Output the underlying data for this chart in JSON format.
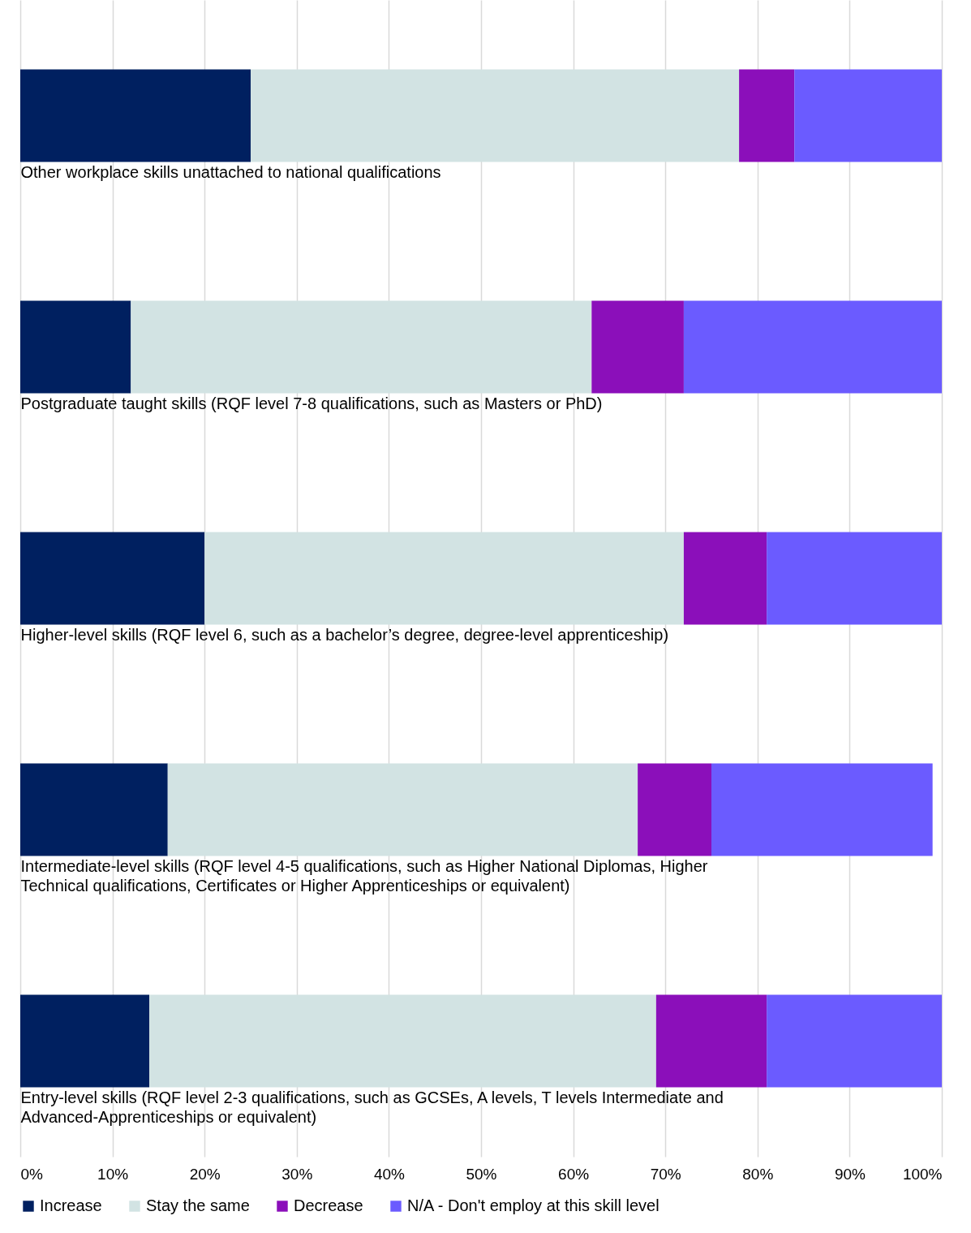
{
  "chart_data": {
    "type": "bar",
    "orientation": "horizontal",
    "stacked": true,
    "categories": [
      "Other workplace skills unattached to national qualifications",
      "Postgraduate taught skills (RQF level 7-8 qualifications, such as Masters or PhD)",
      "Higher-level skills (RQF level 6, such as a bachelor’s degree, degree-level apprenticeship)",
      "Intermediate-level skills (RQF level 4-5 qualifications, such as Higher National Diplomas, Higher Technical qualifications, Certificates or Higher Apprenticeships or equivalent)",
      "Entry-level skills (RQF level 2-3 qualifications, such as GCSEs, A levels, T levels Intermediate and Advanced-Apprenticeships or equivalent)"
    ],
    "series": [
      {
        "name": "Increase",
        "color": "#002060",
        "values": [
          25,
          12,
          20,
          16,
          14
        ]
      },
      {
        "name": "Stay the same",
        "color": "#d2e3e3",
        "values": [
          53,
          50,
          52,
          51,
          55
        ]
      },
      {
        "name": "Decrease",
        "color": "#8b0fba",
        "values": [
          6,
          10,
          9,
          8,
          12
        ]
      },
      {
        "name": "N/A - Don't employ at this skill level",
        "color": "#6b5bff",
        "values": [
          16,
          28,
          19,
          24,
          19
        ]
      }
    ],
    "xlim": [
      0,
      100
    ],
    "xticks": [
      {
        "value": 0,
        "label": "0%"
      },
      {
        "value": 10,
        "label": "10%"
      },
      {
        "value": 20,
        "label": "20%"
      },
      {
        "value": 30,
        "label": "30%"
      },
      {
        "value": 40,
        "label": "40%"
      },
      {
        "value": 50,
        "label": "50%"
      },
      {
        "value": 60,
        "label": "60%"
      },
      {
        "value": 70,
        "label": "70%"
      },
      {
        "value": 80,
        "label": "80%"
      },
      {
        "value": 90,
        "label": "90%"
      },
      {
        "value": 100,
        "label": "100%"
      }
    ],
    "grid": "x",
    "legend": "bottom"
  }
}
